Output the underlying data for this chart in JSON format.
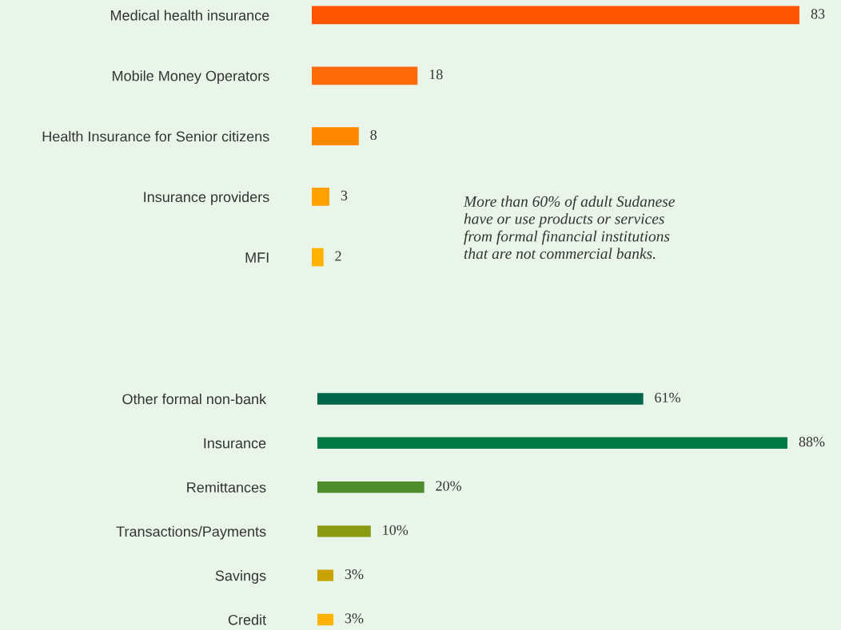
{
  "chart_data": [
    {
      "type": "bar",
      "orientation": "horizontal",
      "categories": [
        "Medical health insurance",
        "Mobile Money Operators",
        "Health Insurance for Senior citizens",
        "Insurance providers",
        "MFI"
      ],
      "values": [
        83,
        18,
        8,
        3,
        2
      ],
      "colors": [
        "#ff5500",
        "#ff6a0a",
        "#ff8800",
        "#ffa200",
        "#ffb300"
      ],
      "data_labels": true,
      "grid": false,
      "legend": false,
      "annotations": [
        "More than 60% of adult Sudanese\nhave or use products or services\nfrom formal financial institutions\nthat are not commercial banks."
      ]
    },
    {
      "type": "bar",
      "orientation": "horizontal",
      "categories": [
        "Other formal non-bank",
        "Insurance",
        "Remittances",
        "Transactions/Payments",
        "Savings",
        "Credit"
      ],
      "values": [
        61,
        88,
        20,
        10,
        3,
        3
      ],
      "colors": [
        "#00664a",
        "#007a45",
        "#4e8c2e",
        "#8a9a12",
        "#c8a200",
        "#ffb300"
      ],
      "value_labels": [
        "61%",
        "88%",
        "20%",
        "10%",
        "3%",
        "3%"
      ],
      "grid": false,
      "legend": false
    }
  ]
}
